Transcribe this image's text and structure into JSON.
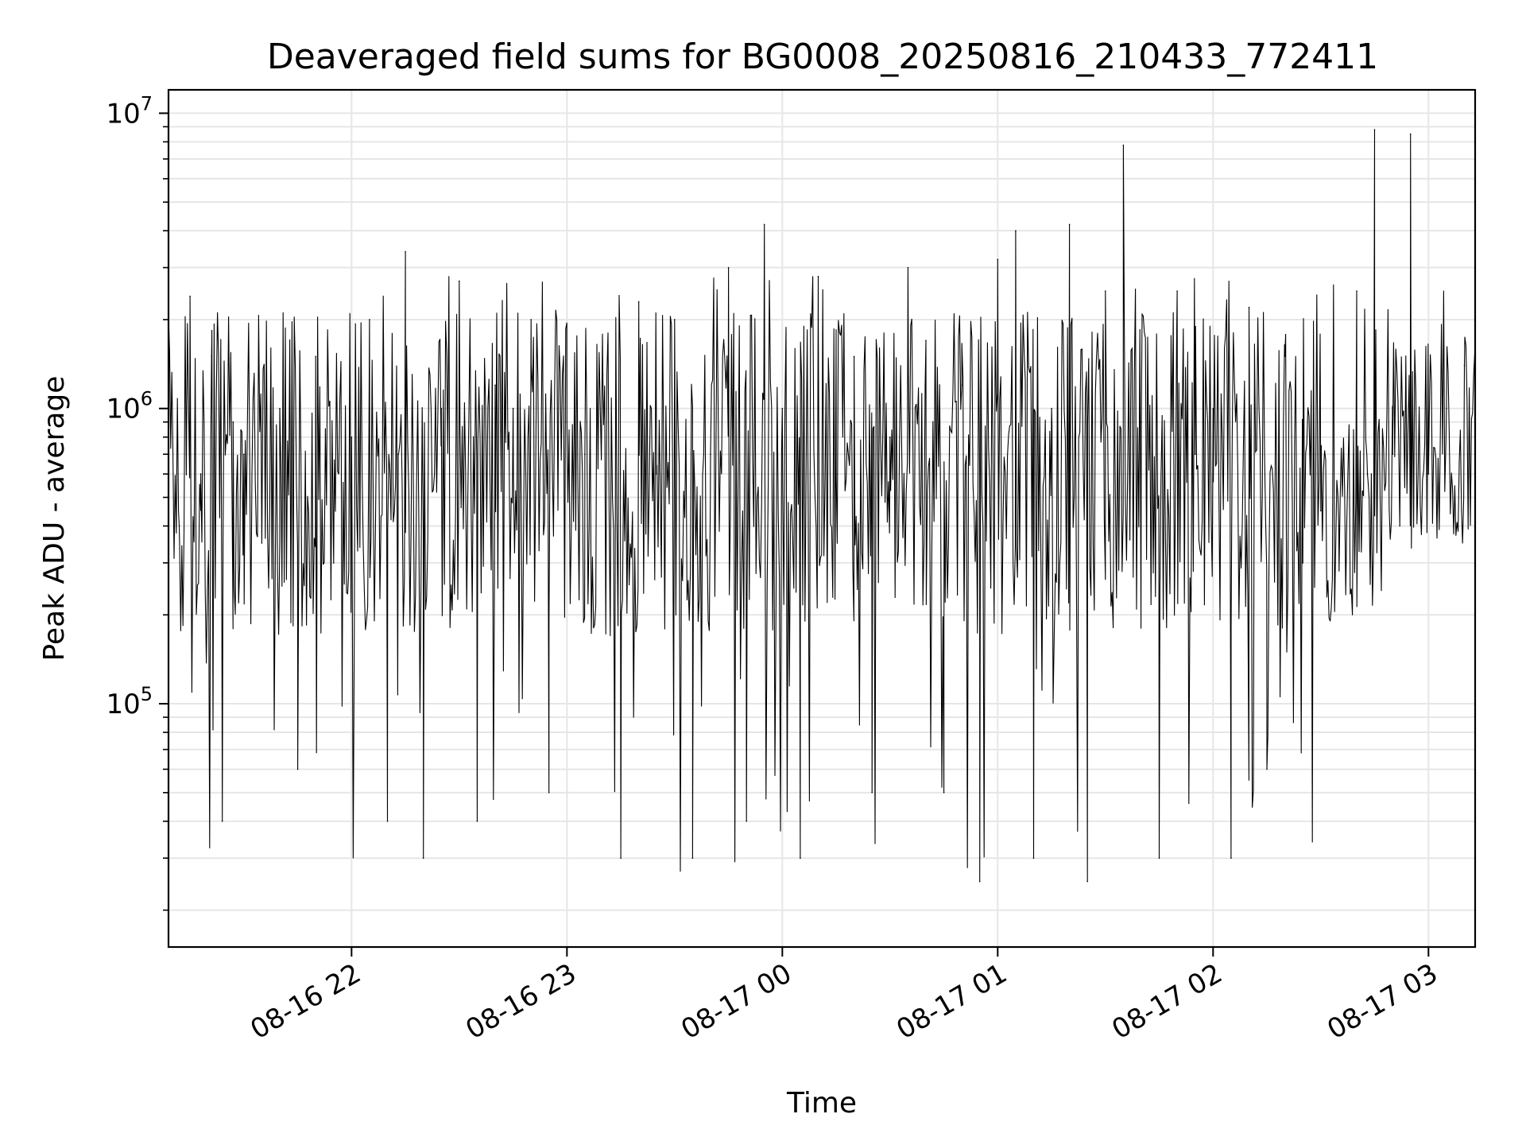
{
  "chart_data": {
    "type": "line",
    "title": "Deaveraged field sums for BG0008_20250816_210433_772411",
    "xlabel": "Time",
    "ylabel": "Peak ADU - average",
    "yscale": "log",
    "ylim": [
      15000,
      12000000
    ],
    "xlim": [
      "2025-08-16 21:09",
      "2025-08-17 03:13"
    ],
    "grid": true,
    "line_color": "#000000",
    "grid_color": "#e6e6e6",
    "x_ticks": [
      {
        "value": "2025-08-16 22:00",
        "label": "08-16 22"
      },
      {
        "value": "2025-08-16 23:00",
        "label": "08-16 23"
      },
      {
        "value": "2025-08-17 00:00",
        "label": "08-17 00"
      },
      {
        "value": "2025-08-17 01:00",
        "label": "08-17 01"
      },
      {
        "value": "2025-08-17 02:00",
        "label": "08-17 02"
      },
      {
        "value": "2025-08-17 03:00",
        "label": "08-17 03"
      }
    ],
    "y_ticks": [
      {
        "value": 100000,
        "base": "10",
        "exp": "5"
      },
      {
        "value": 1000000,
        "base": "10",
        "exp": "6"
      },
      {
        "value": 10000000,
        "base": "10",
        "exp": "7"
      }
    ],
    "series": [
      {
        "x": [
          "2025-08-16 21:09",
          "2025-08-16 21:12",
          "2025-08-16 21:15",
          "2025-08-16 21:18",
          "2025-08-16 21:21",
          "2025-08-16 21:24",
          "2025-08-16 21:27",
          "2025-08-16 21:30",
          "2025-08-16 21:35",
          "2025-08-16 21:40",
          "2025-08-16 21:45",
          "2025-08-16 21:50",
          "2025-08-16 21:55",
          "2025-08-16 22:00",
          "2025-08-16 22:05",
          "2025-08-16 22:10",
          "2025-08-16 22:13",
          "2025-08-16 22:15",
          "2025-08-16 22:20",
          "2025-08-16 22:25",
          "2025-08-16 22:30",
          "2025-08-16 22:35",
          "2025-08-16 22:40",
          "2025-08-16 22:45",
          "2025-08-16 22:50",
          "2025-08-16 22:55",
          "2025-08-16 23:00",
          "2025-08-16 23:05",
          "2025-08-16 23:10",
          "2025-08-16 23:15",
          "2025-08-16 23:20",
          "2025-08-16 23:25",
          "2025-08-16 23:30",
          "2025-08-16 23:35",
          "2025-08-16 23:40",
          "2025-08-16 23:45",
          "2025-08-16 23:50",
          "2025-08-16 23:55",
          "2025-08-17 00:00",
          "2025-08-17 00:05",
          "2025-08-17 00:10",
          "2025-08-17 00:15",
          "2025-08-17 00:20",
          "2025-08-17 00:25",
          "2025-08-17 00:30",
          "2025-08-17 00:35",
          "2025-08-17 00:40",
          "2025-08-17 00:45",
          "2025-08-17 00:50",
          "2025-08-17 00:55",
          "2025-08-17 01:00",
          "2025-08-17 01:05",
          "2025-08-17 01:10",
          "2025-08-17 01:15",
          "2025-08-17 01:20",
          "2025-08-17 01:25",
          "2025-08-17 01:30",
          "2025-08-17 01:35",
          "2025-08-17 01:40",
          "2025-08-17 01:45",
          "2025-08-17 01:50",
          "2025-08-17 01:55",
          "2025-08-17 02:00",
          "2025-08-17 02:05",
          "2025-08-17 02:10",
          "2025-08-17 02:15",
          "2025-08-17 02:20",
          "2025-08-17 02:25",
          "2025-08-17 02:30",
          "2025-08-17 02:35",
          "2025-08-17 02:40",
          "2025-08-17 02:43",
          "2025-08-17 02:45",
          "2025-08-17 02:50",
          "2025-08-17 02:52",
          "2025-08-17 02:55",
          "2025-08-17 03:00",
          "2025-08-17 03:05",
          "2025-08-17 03:10",
          "2025-08-17 03:13"
        ],
        "y": [
          30000,
          400000,
          2400000,
          600000,
          1500000,
          40000,
          900000,
          700000,
          350000,
          1000000,
          60000,
          1500000,
          300000,
          800000,
          2000000,
          40000,
          700000,
          3400000,
          30000,
          1000000,
          2700000,
          40000,
          1200000,
          1000000,
          2000000,
          50000,
          900000,
          700000,
          1300000,
          30000,
          2300000,
          600000,
          2000000,
          30000,
          700000,
          3000000,
          40000,
          4200000,
          1000000,
          30000,
          2800000,
          600000,
          1500000,
          50000,
          800000,
          3000000,
          1700000,
          50000,
          1200000,
          25000,
          3200000,
          4000000,
          30000,
          1000000,
          4200000,
          25000,
          2500000,
          7800000,
          900000,
          30000,
          2500000,
          700000,
          1000000,
          30000,
          2200000,
          60000,
          1500000,
          300000,
          450000,
          400000,
          2500000,
          600000,
          8800000,
          700000,
          400000,
          8500000,
          600000,
          1000000,
          1400000,
          900000
        ]
      }
    ]
  }
}
